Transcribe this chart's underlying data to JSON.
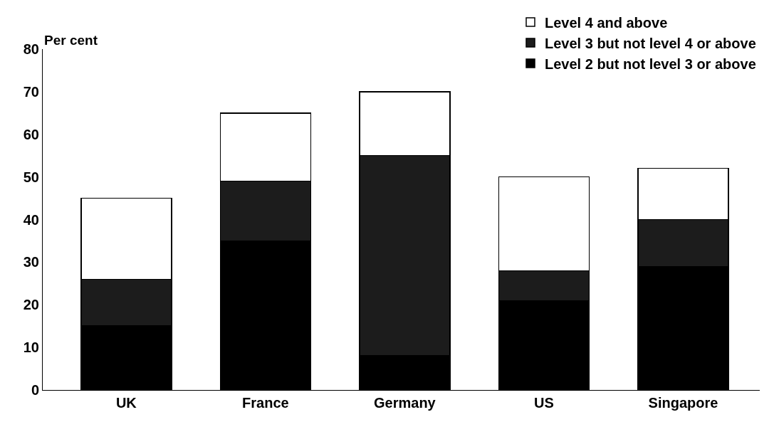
{
  "chart_data": {
    "type": "bar",
    "stacked": true,
    "ylabel": "Per cent",
    "categories": [
      "UK",
      "France",
      "Germany",
      "US",
      "Singapore"
    ],
    "series": [
      {
        "name": "Level 2 but not level 3 or above",
        "color": "#000000",
        "values": [
          15,
          35,
          8,
          21,
          29
        ]
      },
      {
        "name": "Level 3 but not level 4 or above",
        "color": "#1c1c1c",
        "values": [
          11,
          14,
          47,
          7,
          11
        ]
      },
      {
        "name": "Level 4 and above",
        "color": "#ffffff",
        "values": [
          19,
          16,
          15,
          22,
          12
        ]
      }
    ],
    "ylim": [
      0,
      80
    ],
    "yticks": [
      0,
      10,
      20,
      30,
      40,
      50,
      60,
      70,
      80
    ],
    "legend": "top right"
  }
}
